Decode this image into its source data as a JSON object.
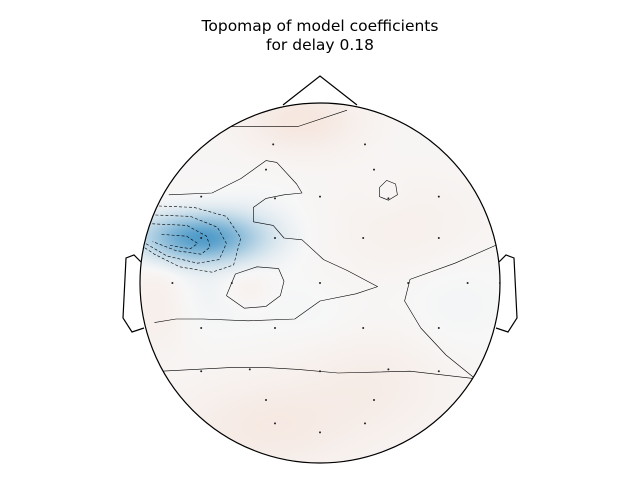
{
  "chart_data": {
    "type": "heatmap",
    "subtype": "topomap",
    "title_line1": "Topomap of model coefficients",
    "title_line2": "for delay 0.18",
    "colormap": "RdBu_r",
    "colors": {
      "negative": "#4f9bc9",
      "positive": "#f2a57f",
      "neutral": "#f7f7f7",
      "outline": "#000000"
    },
    "sensors": [
      {
        "x": -0.26,
        "y": 0.77
      },
      {
        "x": 0.25,
        "y": 0.77
      },
      {
        "x": -0.3,
        "y": 0.63
      },
      {
        "x": 0.3,
        "y": 0.63
      },
      {
        "x": -0.66,
        "y": 0.48
      },
      {
        "x": -0.25,
        "y": 0.47
      },
      {
        "x": 0.0,
        "y": 0.48
      },
      {
        "x": 0.38,
        "y": 0.47
      },
      {
        "x": 0.66,
        "y": 0.48
      },
      {
        "x": -0.66,
        "y": 0.25
      },
      {
        "x": -0.25,
        "y": 0.25
      },
      {
        "x": 0.24,
        "y": 0.25
      },
      {
        "x": 0.66,
        "y": 0.25
      },
      {
        "x": -0.82,
        "y": 0.0
      },
      {
        "x": -0.49,
        "y": 0.0
      },
      {
        "x": 0.0,
        "y": 0.0
      },
      {
        "x": 0.49,
        "y": 0.0
      },
      {
        "x": 0.82,
        "y": 0.0
      },
      {
        "x": -0.66,
        "y": -0.25
      },
      {
        "x": -0.25,
        "y": -0.25
      },
      {
        "x": 0.24,
        "y": -0.25
      },
      {
        "x": 0.66,
        "y": -0.25
      },
      {
        "x": -0.66,
        "y": -0.49
      },
      {
        "x": -0.39,
        "y": -0.48
      },
      {
        "x": 0.0,
        "y": -0.49
      },
      {
        "x": 0.38,
        "y": -0.48
      },
      {
        "x": 0.66,
        "y": -0.49
      },
      {
        "x": -0.3,
        "y": -0.65
      },
      {
        "x": 0.3,
        "y": -0.65
      },
      {
        "x": -0.25,
        "y": -0.78
      },
      {
        "x": 0.25,
        "y": -0.78
      },
      {
        "x": 0.0,
        "y": -0.83
      },
      {
        "x": 1.0,
        "y": 0.0
      }
    ],
    "sources": [
      {
        "x": -0.66,
        "y": 0.25,
        "value": -1.0,
        "sx": 0.22,
        "sy": 0.09
      },
      {
        "x": -0.6,
        "y": -0.05,
        "value": -0.07,
        "sx": 0.3,
        "sy": 0.16
      },
      {
        "x": -0.35,
        "y": 0.38,
        "value": -0.05,
        "sx": 0.18,
        "sy": 0.12
      },
      {
        "x": 0.0,
        "y": -0.2,
        "value": -0.03,
        "sx": 0.2,
        "sy": 0.12
      },
      {
        "x": 0.75,
        "y": -0.1,
        "value": -0.05,
        "sx": 0.22,
        "sy": 0.22
      },
      {
        "x": 0.37,
        "y": 0.48,
        "value": -0.03,
        "sx": 0.08,
        "sy": 0.07
      },
      {
        "x": -0.1,
        "y": 0.9,
        "value": 0.18,
        "sx": 0.22,
        "sy": 0.12
      },
      {
        "x": -0.9,
        "y": -0.1,
        "value": 0.12,
        "sx": 0.12,
        "sy": 0.18
      },
      {
        "x": -0.4,
        "y": -0.03,
        "value": 0.1,
        "sx": 0.1,
        "sy": 0.08
      },
      {
        "x": -0.3,
        "y": -0.8,
        "value": 0.14,
        "sx": 0.35,
        "sy": 0.18
      },
      {
        "x": 0.3,
        "y": -0.55,
        "value": 0.1,
        "sx": 0.3,
        "sy": 0.2
      },
      {
        "x": 0.5,
        "y": 0.3,
        "value": 0.07,
        "sx": 0.3,
        "sy": 0.2
      }
    ],
    "contours": [
      {
        "style": "dashed",
        "points": [
          [
            -0.95,
            0.43
          ],
          [
            -0.7,
            0.42
          ],
          [
            -0.52,
            0.37
          ],
          [
            -0.44,
            0.25
          ],
          [
            -0.48,
            0.1
          ],
          [
            -0.6,
            0.06
          ],
          [
            -0.78,
            0.09
          ],
          [
            -0.92,
            0.16
          ],
          [
            -0.98,
            0.2
          ]
        ]
      },
      {
        "style": "dashed",
        "points": [
          [
            -0.97,
            0.38
          ],
          [
            -0.72,
            0.37
          ],
          [
            -0.57,
            0.31
          ],
          [
            -0.52,
            0.22
          ],
          [
            -0.56,
            0.13
          ],
          [
            -0.68,
            0.11
          ],
          [
            -0.85,
            0.15
          ],
          [
            -0.97,
            0.22
          ]
        ]
      },
      {
        "style": "dashed",
        "points": [
          [
            -0.96,
            0.33
          ],
          [
            -0.74,
            0.32
          ],
          [
            -0.63,
            0.26
          ],
          [
            -0.61,
            0.2
          ],
          [
            -0.66,
            0.16
          ],
          [
            -0.8,
            0.18
          ],
          [
            -0.93,
            0.23
          ]
        ]
      },
      {
        "style": "dashed",
        "points": [
          [
            -0.88,
            0.27
          ],
          [
            -0.74,
            0.26
          ],
          [
            -0.68,
            0.22
          ],
          [
            -0.72,
            0.19
          ],
          [
            -0.84,
            0.21
          ]
        ]
      },
      {
        "style": "solid",
        "points": [
          [
            -0.88,
            0.68
          ],
          [
            -0.73,
            0.86
          ],
          [
            -0.46,
            0.87
          ],
          [
            -0.12,
            0.87
          ],
          [
            0.15,
            0.96
          ]
        ]
      },
      {
        "style": "solid",
        "points": [
          [
            -0.84,
            0.49
          ],
          [
            -0.6,
            0.5
          ],
          [
            -0.44,
            0.58
          ],
          [
            -0.3,
            0.68
          ],
          [
            -0.24,
            0.67
          ],
          [
            -0.13,
            0.55
          ],
          [
            -0.1,
            0.5
          ],
          [
            -0.2,
            0.49
          ],
          [
            -0.3,
            0.47
          ],
          [
            -0.37,
            0.42
          ],
          [
            -0.37,
            0.34
          ],
          [
            -0.26,
            0.32
          ],
          [
            -0.2,
            0.25
          ],
          [
            -0.1,
            0.24
          ],
          [
            0.02,
            0.13
          ],
          [
            0.15,
            0.07
          ],
          [
            0.32,
            -0.02
          ],
          [
            0.2,
            -0.06
          ],
          [
            0.0,
            -0.1
          ],
          [
            -0.14,
            -0.2
          ],
          [
            -0.4,
            -0.21
          ],
          [
            -0.65,
            -0.2
          ],
          [
            -0.8,
            -0.2
          ],
          [
            -0.92,
            -0.22
          ]
        ]
      },
      {
        "style": "solid",
        "points": [
          [
            -0.52,
            -0.07
          ],
          [
            -0.47,
            0.05
          ],
          [
            -0.35,
            0.09
          ],
          [
            -0.23,
            0.08
          ],
          [
            -0.2,
            0.01
          ],
          [
            -0.22,
            -0.07
          ],
          [
            -0.3,
            -0.13
          ],
          [
            -0.42,
            -0.14
          ],
          [
            -0.52,
            -0.07
          ]
        ]
      },
      {
        "style": "solid",
        "points": [
          [
            1.0,
            0.22
          ],
          [
            0.75,
            0.11
          ],
          [
            0.5,
            0.02
          ],
          [
            0.47,
            -0.1
          ],
          [
            0.56,
            -0.25
          ],
          [
            0.7,
            -0.4
          ],
          [
            0.86,
            -0.53
          ],
          [
            0.98,
            -0.3
          ]
        ]
      },
      {
        "style": "solid",
        "points": [
          [
            0.33,
            0.53
          ],
          [
            0.37,
            0.57
          ],
          [
            0.42,
            0.55
          ],
          [
            0.43,
            0.49
          ],
          [
            0.38,
            0.46
          ],
          [
            0.33,
            0.48
          ],
          [
            0.33,
            0.53
          ]
        ]
      },
      {
        "style": "solid",
        "points": [
          [
            -0.88,
            -0.49
          ],
          [
            -0.5,
            -0.47
          ],
          [
            -0.3,
            -0.47
          ],
          [
            -0.12,
            -0.48
          ],
          [
            0.1,
            -0.5
          ],
          [
            0.5,
            -0.49
          ],
          [
            0.85,
            -0.53
          ],
          [
            0.92,
            -0.55
          ]
        ]
      }
    ]
  }
}
